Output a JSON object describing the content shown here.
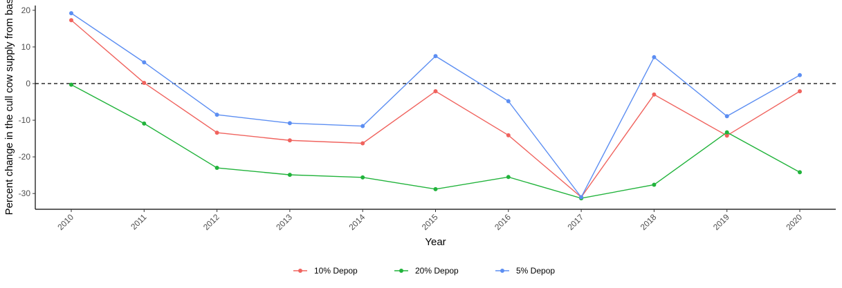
{
  "chart_data": {
    "type": "line",
    "title": "",
    "xlabel": "Year",
    "ylabel": "Percent change in the cull cow supply from base",
    "categories": [
      "2010",
      "2011",
      "2012",
      "2013",
      "2014",
      "2015",
      "2016",
      "2017",
      "2018",
      "2019",
      "2020"
    ],
    "ylim": [
      -34.3,
      21.3
    ],
    "yticks": [
      20,
      10,
      0,
      -10,
      -20,
      -30
    ],
    "reference_line": 0,
    "grid": false,
    "legend_position": "bottom",
    "series": [
      {
        "name": "10% Depop",
        "color": "#f0635e",
        "values": [
          17.3,
          0.2,
          -13.4,
          -15.5,
          -16.3,
          -2.1,
          -14.1,
          -31.0,
          -3.0,
          -14.2,
          -2.1
        ]
      },
      {
        "name": "20% Depop",
        "color": "#21b33b",
        "values": [
          -0.3,
          -10.9,
          -23.0,
          -24.9,
          -25.6,
          -28.8,
          -25.5,
          -31.3,
          -27.6,
          -13.3,
          -24.2
        ]
      },
      {
        "name": "5% Depop",
        "color": "#5c8ef2",
        "values": [
          19.2,
          5.8,
          -8.5,
          -10.8,
          -11.6,
          7.5,
          -4.8,
          -31.0,
          7.2,
          -8.9,
          2.3
        ]
      }
    ]
  }
}
